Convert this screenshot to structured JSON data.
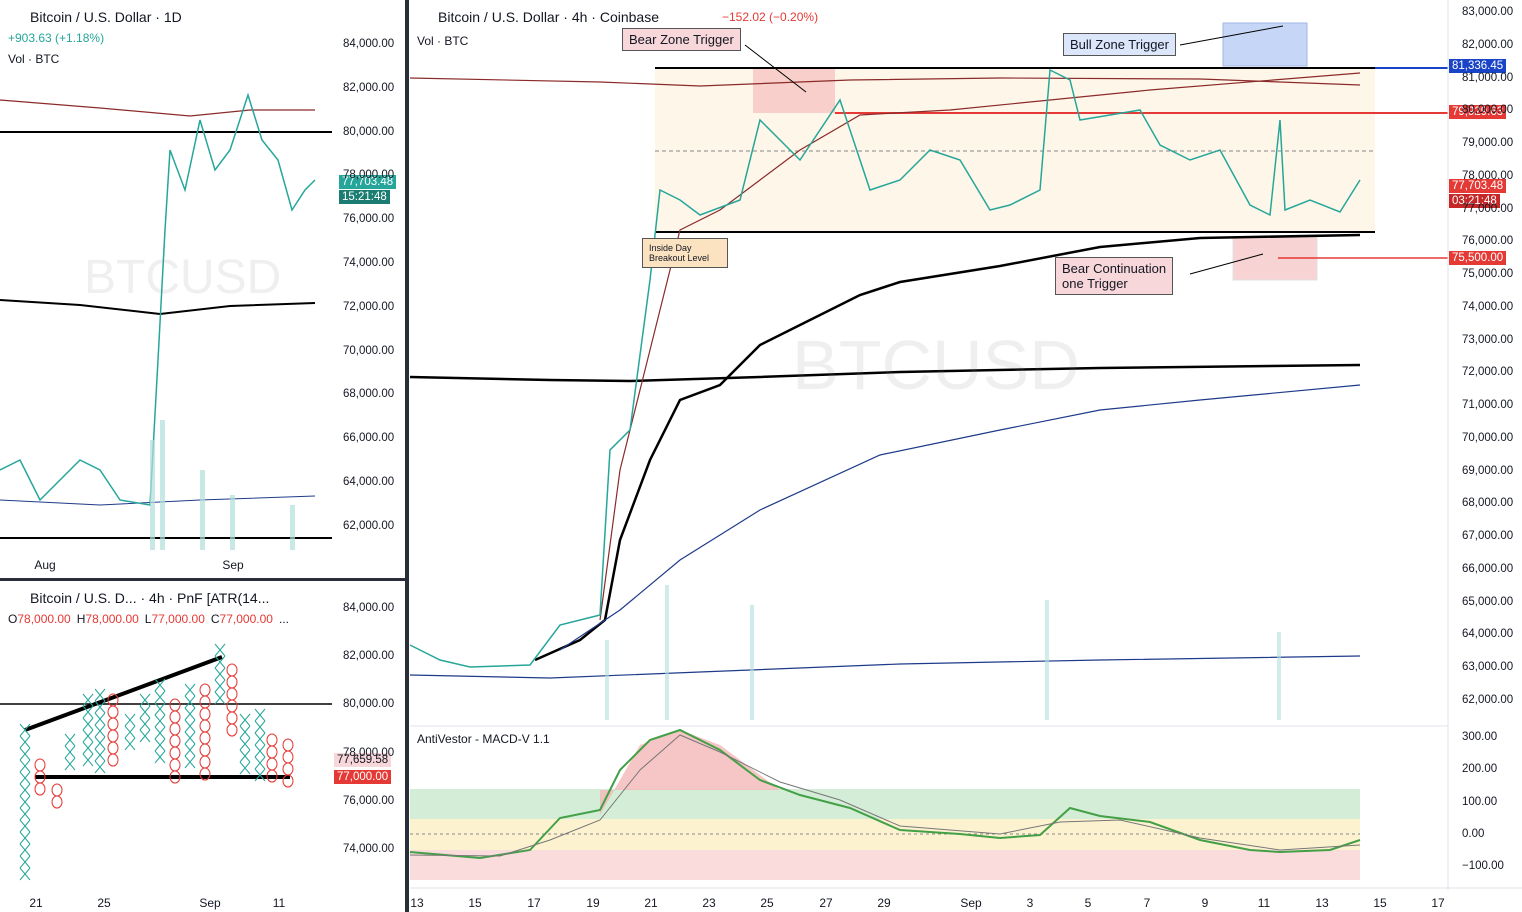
{
  "left_daily": {
    "title": "Bitcoin / U.S. Dollar · 1D",
    "change": "+903.63 (+1.18%)",
    "volume": "Vol · BTC",
    "watermark": "BTCUSD",
    "price_axis": [
      "84,000.00",
      "82,000.00",
      "80,000.00",
      "78,000.00",
      "76,000.00",
      "74,000.00",
      "72,000.00",
      "70,000.00",
      "68,000.00",
      "66,000.00",
      "64,000.00",
      "62,000.00"
    ],
    "price_tag": "77,703.48",
    "countdown": "15:21:48",
    "time_axis": [
      "Aug",
      "Sep"
    ]
  },
  "left_pnf": {
    "title": "Bitcoin / U.S. D... · 4h · PnF [ATR(14...",
    "ohlc": [
      {
        "label": "O",
        "value": "78,000.00"
      },
      {
        "label": "H",
        "value": "78,000.00"
      },
      {
        "label": "L",
        "value": "77,000.00"
      },
      {
        "label": "C",
        "value": "77,000.00"
      }
    ],
    "more": "...",
    "price_axis": [
      "84,000.00",
      "82,000.00",
      "80,000.00",
      "78,000.00",
      "76,000.00",
      "74,000.00"
    ],
    "tags": [
      "77,659.58",
      "77,000.00"
    ],
    "time_axis": [
      "21",
      "25",
      "Sep",
      "11"
    ]
  },
  "main": {
    "title": "Bitcoin / U.S. Dollar · 4h · Coinbase",
    "change": "−152.02 (−0.20%)",
    "volume": "Vol · BTC",
    "watermark": "BTCUSD",
    "price_axis": [
      "83,000.00",
      "82,000.00",
      "81,000.00",
      "80,000.00",
      "79,000.00",
      "78,000.00",
      "77,000.00",
      "76,000.00",
      "75,000.00",
      "74,000.00",
      "73,000.00",
      "72,000.00",
      "71,000.00",
      "70,000.00",
      "69,000.00",
      "68,000.00",
      "67,000.00",
      "66,000.00",
      "65,000.00",
      "64,000.00",
      "63,000.00",
      "62,000.00"
    ],
    "tags": {
      "bull_line": "81,336.45",
      "bear_line": "79,929.63",
      "last": "77,703.48",
      "countdown": "03:21:48",
      "bear_cont": "75,500.00"
    },
    "annotations": {
      "bear_zone": "Bear Zone Trigger",
      "bull_zone": "Bull Zone Trigger",
      "inside_day": "Inside Day Breakout Level",
      "bear_cont_1": "Bear Continuation",
      "bear_cont_2": "one Trigger"
    },
    "indicator": {
      "title": "AntiVestor - MACD-V 1.1",
      "axis": [
        "300.00",
        "200.00",
        "100.00",
        "0.00",
        "−100.00"
      ]
    },
    "time_axis": [
      "13",
      "15",
      "17",
      "19",
      "21",
      "23",
      "25",
      "27",
      "29",
      "Sep",
      "3",
      "5",
      "7",
      "9",
      "11",
      "13",
      "15",
      "17"
    ]
  }
}
